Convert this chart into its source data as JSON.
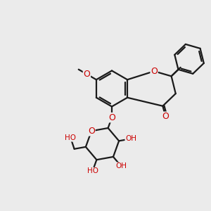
{
  "bg_color": "#ebebeb",
  "bond_color": "#1a1a1a",
  "oxygen_color": "#cc0000",
  "line_width": 1.6,
  "font_size": 8.5,
  "fig_width": 3.0,
  "fig_height": 3.0,
  "xlim": [
    0,
    10
  ],
  "ylim": [
    0,
    10
  ]
}
